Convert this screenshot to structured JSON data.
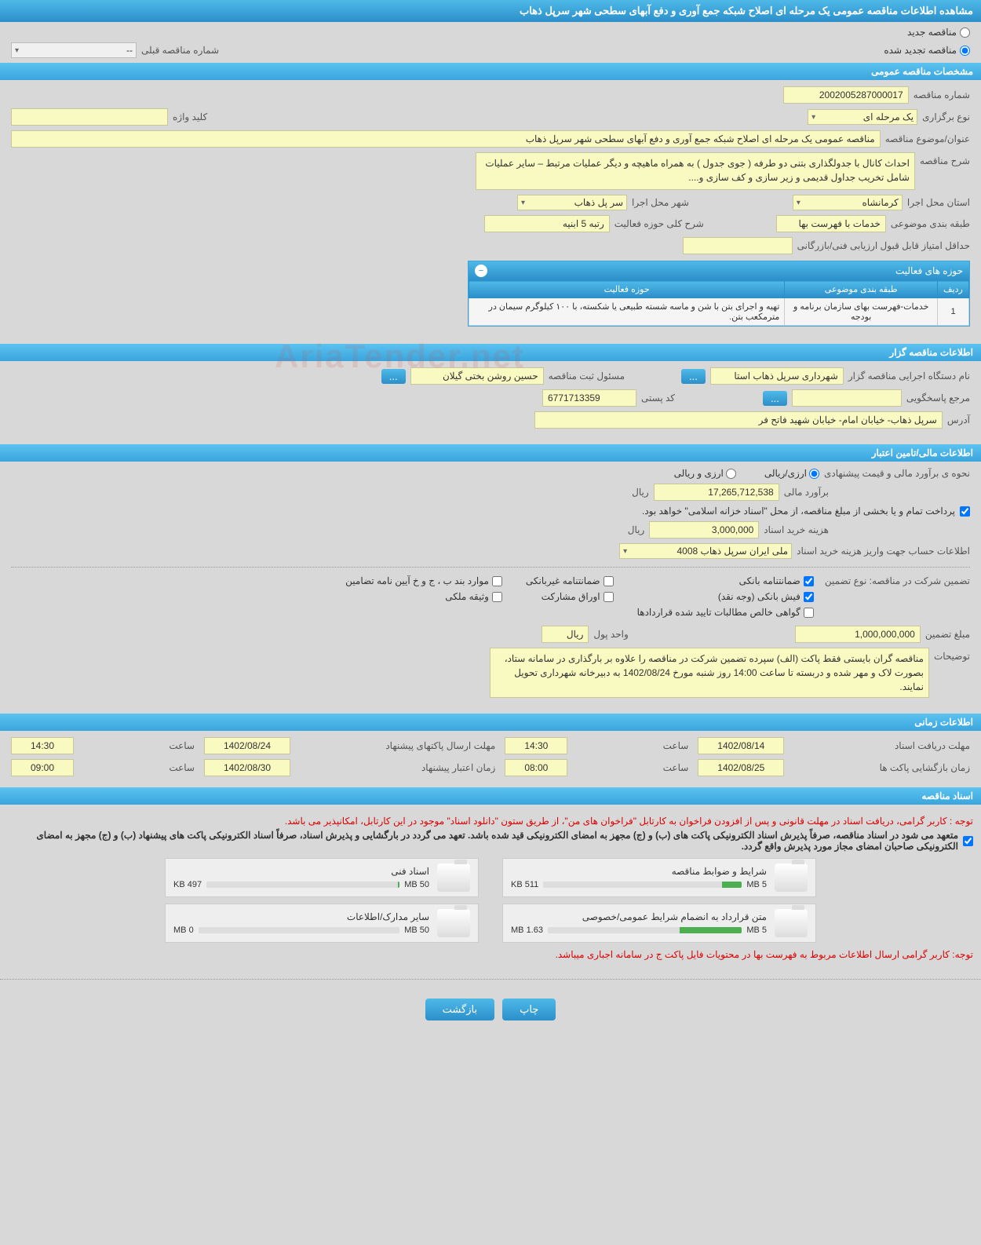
{
  "header": {
    "title": "مشاهده اطلاعات مناقصه عمومی یک مرحله ای اصلاح شبکه جمع آوری و دفع آبهای سطحی شهر سرپل ذهاب"
  },
  "tender_type": {
    "new_label": "مناقصه جدید",
    "renewed_label": "مناقصه تجدید شده",
    "prev_num_label": "شماره مناقصه قبلی",
    "prev_num_value": "--"
  },
  "sections": {
    "general": "مشخصات مناقصه عمومی",
    "organizer": "اطلاعات مناقصه گزار",
    "financial": "اطلاعات مالی/تامین اعتبار",
    "timing": "اطلاعات زمانی",
    "documents": "اسناد مناقصه"
  },
  "general": {
    "tender_no_lbl": "شماره مناقصه",
    "tender_no": "2002005287000017",
    "holding_type_lbl": "نوع برگزاری",
    "holding_type": "یک مرحله ای",
    "keyword_lbl": "کلید واژه",
    "keyword": "",
    "title_lbl": "عنوان/موضوع مناقصه",
    "title": "مناقصه عمومی یک مرحله ای اصلاح شبکه جمع آوری و دفع آبهای سطحی شهر سرپل ذهاب",
    "desc_lbl": "شرح مناقصه",
    "desc": "احداث کانال با جدولگذاری بتنی دو طرفه ( جوی جدول ) به همراه ماهیچه و دیگر عملیات مرتبط – سایر عملیات شامل تخریب جداول قدیمی و زیر سازی و کف سازی و....",
    "province_lbl": "استان محل اجرا",
    "province": "کرمانشاه",
    "city_lbl": "شهر محل اجرا",
    "city": "سر پل ذهاب",
    "category_lbl": "طبقه بندی موضوعی",
    "category": "خدمات با فهرست بها",
    "activity_desc_lbl": "شرح کلی حوزه فعالیت",
    "activity_desc": "رتبه 5 ابنیه",
    "min_score_lbl": "حداقل امتیاز قابل قبول ارزیابی فنی/بازرگانی",
    "min_score": ""
  },
  "activity_table": {
    "panel_title": "حوزه های فعالیت",
    "col_row": "ردیف",
    "col_cat": "طبقه بندی موضوعی",
    "col_act": "حوزه فعالیت",
    "row1_idx": "1",
    "row1_cat": "خدمات-فهرست بهای سازمان برنامه و بودجه",
    "row1_act": "تهیه و اجرای بتن با شن و ماسه شسته طبیعی یا شکسته، با ۱۰۰ کیلوگرم سیمان در مترمکعب بتن."
  },
  "organizer": {
    "org_name_lbl": "نام دستگاه اجرایی مناقصه گزار",
    "org_name": "شهرداری سرپل ذهاب استا",
    "resp_lbl": "مسئول ثبت مناقصه",
    "resp": "حسین روشن بختی گیلان",
    "answerer_lbl": "مرجع پاسخگویی",
    "answerer": "",
    "postal_lbl": "کد پستی",
    "postal": "6771713359",
    "address_lbl": "آدرس",
    "address": "سرپل ذهاب- خیابان امام- خیابان شهید فاتح فر",
    "more_btn": "..."
  },
  "financial": {
    "method_lbl": "نحوه ی برآورد مالی و قیمت پیشنهادی",
    "opt_rial": "ارزی/ریالی",
    "opt_both": "ارزی و ریالی",
    "estimate_lbl": "برآورد مالی",
    "estimate": "17,265,712,538",
    "unit_rial": "ریال",
    "note": "پرداخت تمام و یا بخشی از مبلغ مناقصه، از محل \"اسناد خزانه اسلامی\" خواهد بود.",
    "doc_cost_lbl": "هزینه خرید اسناد",
    "doc_cost": "3,000,000",
    "account_lbl": "اطلاعات حساب جهت واریز هزینه خرید اسناد",
    "account": "ملی ایران سرپل ذهاب 4008"
  },
  "guarantee": {
    "type_lbl": "تضمین شرکت در مناقصه:    نوع تضمین",
    "chk_bank": "ضمانتنامه بانکی",
    "chk_nonbank": "ضمانتنامه غیربانکی",
    "chk_bylaw": "موارد بند ب ، ج و خ آیین نامه تضامین",
    "chk_cash": "فیش بانکی (وجه نقد)",
    "chk_securities": "اوراق مشارکت",
    "chk_property": "وثیقه ملکی",
    "chk_confirmed": "گواهی خالص مطالبات تایید شده قراردادها",
    "amount_lbl": "مبلغ تضمین",
    "amount": "1,000,000,000",
    "unit_lbl": "واحد پول",
    "unit": "ریال",
    "notes_lbl": "توضیحات",
    "notes": "مناقصه گران بایستی فقط پاکت (الف) سپرده تضمین شرکت در مناقصه را علاوه بر بارگذاری در سامانه ستاد، بصورت لاک و مهر شده و دربسته تا ساعت 14:00 روز شنبه مورخ 1402/08/24 به دبیرخانه شهرداری تحویل نمایند."
  },
  "timing": {
    "receive_lbl": "مهلت دریافت اسناد",
    "receive_date": "1402/08/14",
    "receive_time": "14:30",
    "send_lbl": "مهلت ارسال پاکتهای پیشنهاد",
    "send_date": "1402/08/24",
    "send_time": "14:30",
    "open_lbl": "زمان بازگشایی پاکت ها",
    "open_date": "1402/08/25",
    "open_time": "08:00",
    "validity_lbl": "زمان اعتبار پیشنهاد",
    "validity_date": "1402/08/30",
    "validity_time": "09:00",
    "time_lbl": "ساعت"
  },
  "documents": {
    "notice1": "توجه : کاربر گرامی، دریافت اسناد در مهلت قانونی و پس از افزودن فراخوان به کارتابل \"فراخوان های من\"، از طریق ستون \"دانلود اسناد\" موجود در این کارتابل، امکانپذیر می باشد.",
    "notice2": "متعهد می شود در اسناد مناقصه، صرفاً پذیرش اسناد الکترونیکی پاکت های (ب) و (ج) مجهز به امضای الکترونیکی قید شده باشد. تعهد می گردد در بارگشایی و پذیرش اسناد، صرفاً اسناد الکترونیکی پاکت های پیشنهاد (ب) و (ج) مجهز به امضای الکترونیکی صاحبان امضای مجاز مورد پذیرش واقع گردد.",
    "notice3": "توجه: کاربر گرامی ارسال اطلاعات مربوط به فهرست بها در محتویات فایل پاکت ج در سامانه اجباری میباشد.",
    "doc1_title": "شرایط و ضوابط مناقصه",
    "doc1_size": "511 KB",
    "doc1_max": "5 MB",
    "doc1_pct": 10,
    "doc2_title": "اسناد فنی",
    "doc2_size": "497 KB",
    "doc2_max": "50 MB",
    "doc2_pct": 1,
    "doc3_title": "متن قرارداد به انضمام شرایط عمومی/خصوصی",
    "doc3_size": "1.63 MB",
    "doc3_max": "5 MB",
    "doc3_pct": 32,
    "doc4_title": "سایر مدارک/اطلاعات",
    "doc4_size": "0 MB",
    "doc4_max": "50 MB",
    "doc4_pct": 0
  },
  "footer": {
    "print": "چاپ",
    "back": "بازگشت"
  },
  "colors": {
    "bar": "#3aa5dd",
    "field": "#f9f9c2"
  }
}
